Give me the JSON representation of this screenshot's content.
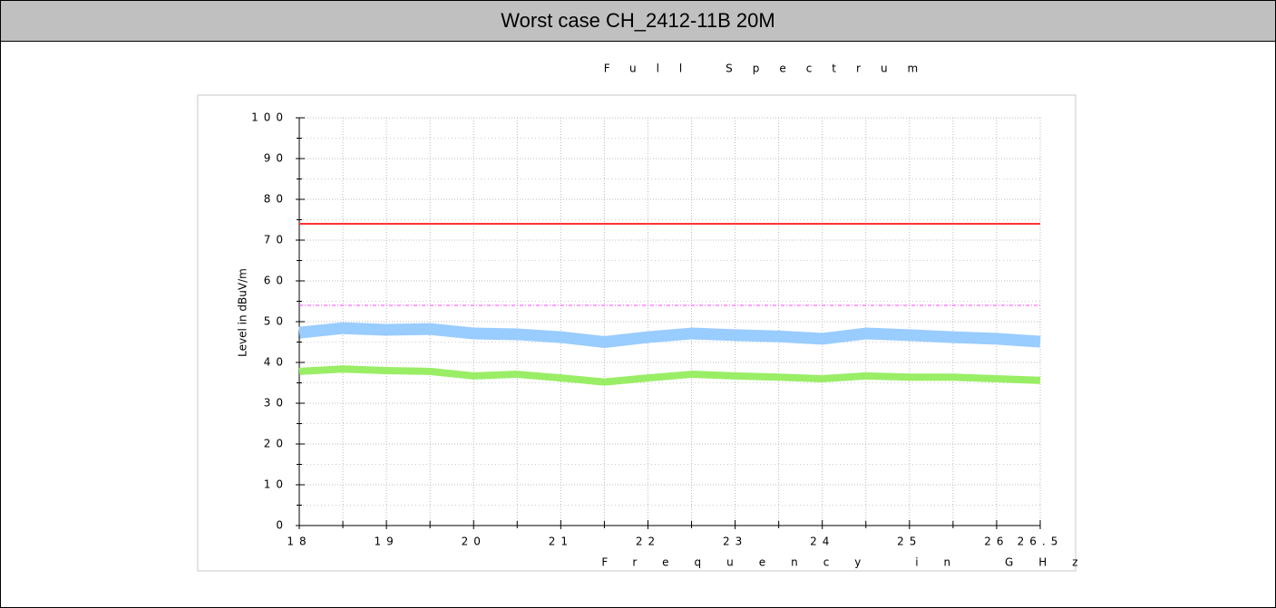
{
  "header": {
    "title": "Worst case CH_2412-11B 20M"
  },
  "chart_data": {
    "type": "line",
    "title": "Full Spectrum",
    "x_label": "Frequency in GHz",
    "y_label": "Level in dBuV/m",
    "x": [
      18,
      18.5,
      19,
      19.5,
      20,
      20.5,
      21,
      21.5,
      22,
      22.5,
      23,
      23.5,
      24,
      24.5,
      25,
      25.5,
      26,
      26.5
    ],
    "series": [
      {
        "color": "#99ccff",
        "values": [
          47.3,
          48.4,
          48,
          48.2,
          47.1,
          46.9,
          46.2,
          45,
          46.2,
          47.1,
          46.7,
          46.4,
          45.8,
          47.1,
          46.7,
          46.2,
          45.8,
          45.1
        ]
      },
      {
        "color": "#99ee66",
        "values": [
          37.8,
          38.4,
          38,
          37.8,
          36.7,
          37.1,
          36.2,
          35.2,
          36.2,
          37.1,
          36.7,
          36.4,
          36,
          36.7,
          36.4,
          36.4,
          36,
          35.6
        ]
      }
    ],
    "hlines": [
      {
        "value": 74,
        "color": "#ff3333",
        "style": "solid"
      },
      {
        "value": 54,
        "color": "#ff44ff",
        "style": "dashed"
      }
    ],
    "xlim": [
      18,
      26.5
    ],
    "ylim": [
      0,
      100
    ],
    "xticks": [
      18,
      19,
      20,
      21,
      22,
      23,
      24,
      25,
      26,
      26.5
    ],
    "xminor": [
      18.5,
      19.5,
      20.5,
      21.5,
      22.5,
      23.5,
      24.5,
      25.5
    ],
    "yticks": [
      0,
      10,
      20,
      30,
      40,
      50,
      60,
      70,
      80,
      90,
      100
    ],
    "grid": true
  }
}
